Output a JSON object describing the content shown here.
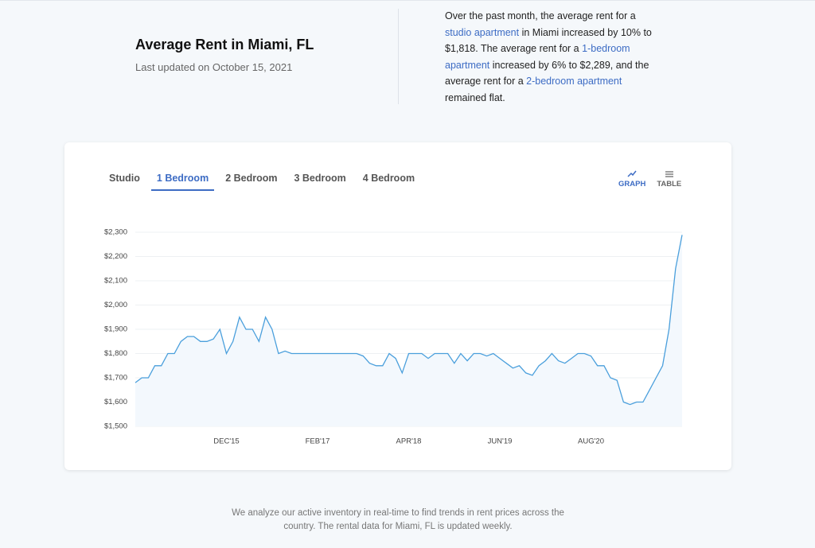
{
  "header": {
    "title": "Average Rent in Miami, FL",
    "updated": "Last updated on October 15, 2021"
  },
  "description": [
    "Over the past month, the average rent for a",
    "studio apartment",
    "in Miami increased by 10% to $1,818. The average rent for a",
    "1-bedroom apartment",
    "increased by 6% to $2,289, and the average rent for a",
    "2-bedroom apartment",
    "remained flat."
  ],
  "tabs": {
    "items": [
      "Studio",
      "1 Bedroom",
      "2 Bedroom",
      "3 Bedroom",
      "4 Bedroom"
    ],
    "active": 1
  },
  "views": {
    "items": [
      "GRAPH",
      "TABLE"
    ],
    "active": 0
  },
  "chart_data": {
    "type": "line",
    "color": "#4a9fdc",
    "categories": [
      null,
      null,
      null,
      null,
      null,
      null,
      null,
      null,
      null,
      null,
      null,
      null,
      null,
      null,
      "DEC'15",
      null,
      null,
      null,
      null,
      null,
      null,
      null,
      null,
      null,
      null,
      null,
      null,
      null,
      "FEB'17",
      null,
      null,
      null,
      null,
      null,
      null,
      null,
      null,
      null,
      null,
      null,
      null,
      null,
      "APR'18",
      null,
      null,
      null,
      null,
      null,
      null,
      null,
      null,
      null,
      null,
      null,
      null,
      null,
      "JUN'19",
      null,
      null,
      null,
      null,
      null,
      null,
      null,
      null,
      null,
      null,
      null,
      null,
      null,
      "AUG'20",
      null,
      null,
      null,
      null,
      null,
      null,
      null,
      null,
      null,
      null,
      null,
      null,
      null,
      null
    ],
    "values": [
      1680,
      1700,
      1700,
      1750,
      1750,
      1800,
      1800,
      1850,
      1870,
      1870,
      1850,
      1850,
      1860,
      1900,
      1800,
      1850,
      1950,
      1900,
      1900,
      1850,
      1950,
      1900,
      1800,
      1810,
      1800,
      1800,
      1800,
      1800,
      1800,
      1800,
      1800,
      1800,
      1800,
      1800,
      1800,
      1790,
      1760,
      1750,
      1750,
      1800,
      1780,
      1720,
      1800,
      1800,
      1800,
      1780,
      1800,
      1800,
      1800,
      1760,
      1800,
      1770,
      1800,
      1800,
      1790,
      1800,
      1780,
      1760,
      1740,
      1750,
      1720,
      1710,
      1750,
      1770,
      1800,
      1770,
      1760,
      1780,
      1800,
      1800,
      1790,
      1750,
      1750,
      1700,
      1690,
      1600,
      1590,
      1600,
      1600,
      1650,
      1700,
      1750,
      1900,
      2150,
      2289
    ],
    "ylim": [
      1500,
      2300
    ],
    "yticks": [
      {
        "value": 1500,
        "label": "$1,500"
      },
      {
        "value": 1600,
        "label": "$1,600"
      },
      {
        "value": 1700,
        "label": "$1,700"
      },
      {
        "value": 1800,
        "label": "$1,800"
      },
      {
        "value": 1900,
        "label": "$1,900"
      },
      {
        "value": 2000,
        "label": "$2,000"
      },
      {
        "value": 2100,
        "label": "$2,100"
      },
      {
        "value": 2200,
        "label": "$2,200"
      },
      {
        "value": 2300,
        "label": "$2,300"
      }
    ],
    "grid": true
  },
  "footer": "We analyze our active inventory in real-time to find trends in rent prices across the country. The rental data for Miami, FL is updated weekly."
}
